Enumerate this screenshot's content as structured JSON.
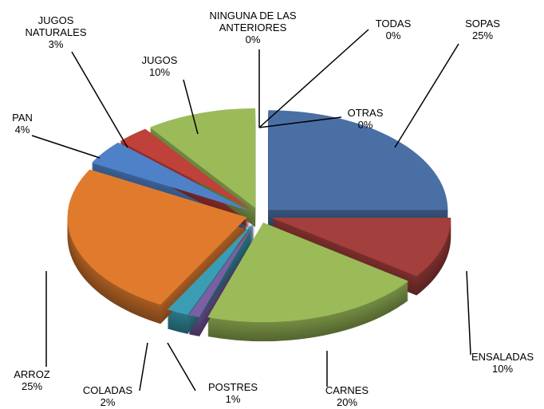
{
  "chart_data": {
    "type": "pie",
    "categories": [
      "SOPAS",
      "ENSALADAS",
      "CARNES",
      "POSTRES",
      "COLADAS",
      "ARROZ",
      "PAN",
      "JUGOS NATURALES",
      "JUGOS",
      "NINGUNA DE LAS ANTERIORES",
      "TODAS",
      "OTRAS"
    ],
    "values": [
      25,
      10,
      20,
      1,
      2,
      25,
      4,
      3,
      10,
      0,
      0,
      0
    ],
    "value_labels": [
      "25%",
      "10%",
      "20%",
      "1%",
      "2%",
      "25%",
      "4%",
      "3%",
      "10%",
      "0%",
      "0%",
      "0%"
    ],
    "colors": [
      "#4a6fa5",
      "#a33f3c",
      "#9bbb59",
      "#7b5ea3",
      "#3a9db3",
      "#e07b2e",
      "#4f81c9",
      "#c0403a",
      "#9bbb59",
      "#888888",
      "#888888",
      "#888888"
    ]
  }
}
